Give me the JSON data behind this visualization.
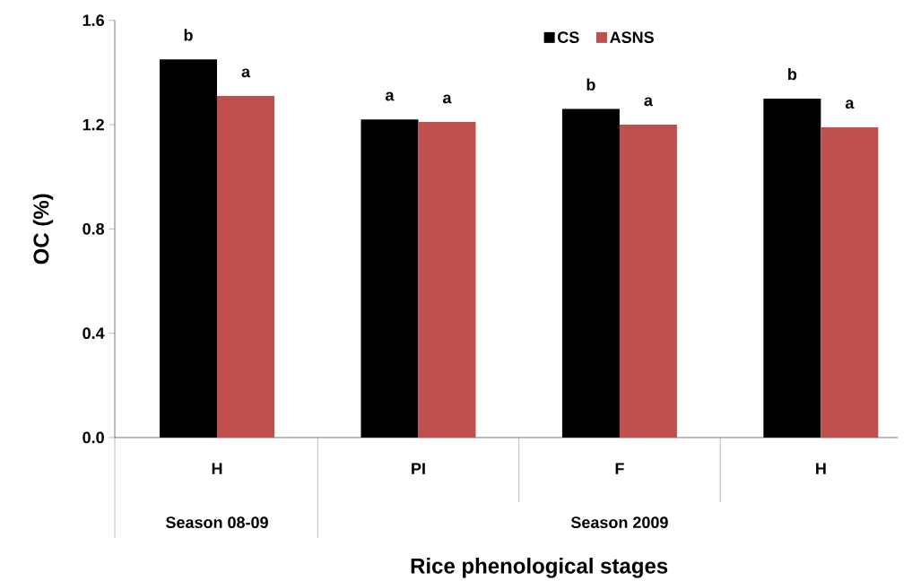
{
  "chart_data": {
    "type": "bar",
    "xlabel": "Rice phenological stages",
    "ylabel": "OC (%)",
    "categories": [
      "H",
      "PI",
      "F",
      "H"
    ],
    "series": [
      {
        "name": "CS",
        "color": "#000000",
        "values": [
          1.45,
          1.22,
          1.26,
          1.3
        ],
        "value_labels": [
          "b",
          "a",
          "b",
          "b"
        ]
      },
      {
        "name": "ASNS",
        "color": "#c0504d",
        "values": [
          1.31,
          1.21,
          1.2,
          1.19
        ],
        "value_labels": [
          "a",
          "a",
          "a",
          "a"
        ]
      }
    ],
    "annotations": [
      "Season 08-09",
      "Season 2009"
    ],
    "ylim": [
      0,
      1.6
    ],
    "yticks": [
      {
        "value": 0,
        "label": "0.0"
      },
      0.4,
      0.8,
      1.2,
      1.6
    ],
    "legend": "top",
    "grid": false
  }
}
